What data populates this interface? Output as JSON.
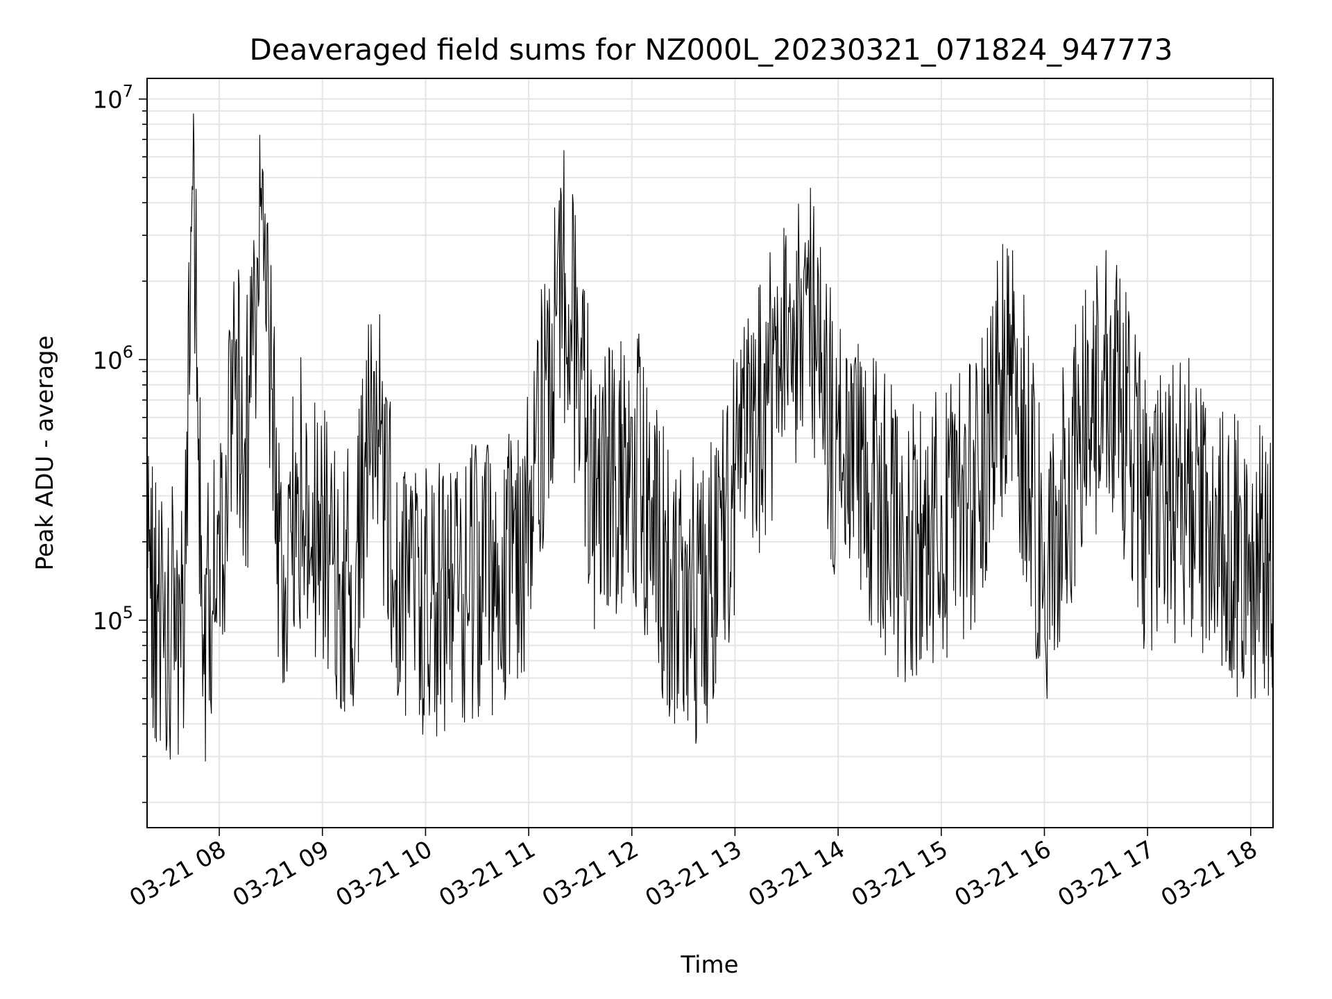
{
  "chart_data": {
    "type": "line",
    "title": "Deaveraged field sums for NZ000L_20230321_071824_947773",
    "xlabel": "Time",
    "ylabel": "Peak ADU - average",
    "yscale": "log",
    "ylim": [
      16000,
      12000000
    ],
    "xlim": [
      "03-21 07:18",
      "03-21 18:13"
    ],
    "grid": true,
    "line_color": "#000000",
    "x_ticks": [
      "03-21 08",
      "03-21 09",
      "03-21 10",
      "03-21 11",
      "03-21 12",
      "03-21 13",
      "03-21 14",
      "03-21 15",
      "03-21 16",
      "03-21 17",
      "03-21 18"
    ],
    "y_ticks": [
      {
        "base": "10",
        "exp": "5",
        "value": 100000
      },
      {
        "base": "10",
        "exp": "6",
        "value": 1000000
      },
      {
        "base": "10",
        "exp": "7",
        "value": 10000000
      }
    ],
    "series": [
      {
        "x": [
          "03-21 07:18",
          "03-21 07:30",
          "03-21 07:40",
          "03-21 07:45",
          "03-21 07:50",
          "03-21 08:00",
          "03-21 08:10",
          "03-21 08:15",
          "03-21 08:25",
          "03-21 08:35",
          "03-21 08:45",
          "03-21 09:00",
          "03-21 09:10",
          "03-21 09:20",
          "03-21 09:30",
          "03-21 09:45",
          "03-21 10:00",
          "03-21 10:20",
          "03-21 10:40",
          "03-21 11:00",
          "03-21 11:20",
          "03-21 11:40",
          "03-21 12:00",
          "03-21 12:20",
          "03-21 12:40",
          "03-21 13:00",
          "03-21 13:20",
          "03-21 13:40",
          "03-21 14:00",
          "03-21 14:20",
          "03-21 14:40",
          "03-21 15:00",
          "03-21 15:20",
          "03-21 15:40",
          "03-21 16:00",
          "03-21 16:20",
          "03-21 16:40",
          "03-21 17:00",
          "03-21 17:20",
          "03-21 17:40",
          "03-21 18:00",
          "03-21 18:13"
        ],
        "values": [
          180000,
          120000,
          150000,
          8800000,
          100000,
          250000,
          1200000,
          500000,
          5400000,
          200000,
          400000,
          300000,
          150000,
          200000,
          900000,
          200000,
          150000,
          180000,
          200000,
          300000,
          2900000,
          350000,
          600000,
          200000,
          150000,
          400000,
          1000000,
          2200000,
          600000,
          400000,
          250000,
          300000,
          400000,
          1500000,
          200000,
          700000,
          1100000,
          300000,
          400000,
          300000,
          200000,
          230000
        ]
      }
    ]
  }
}
